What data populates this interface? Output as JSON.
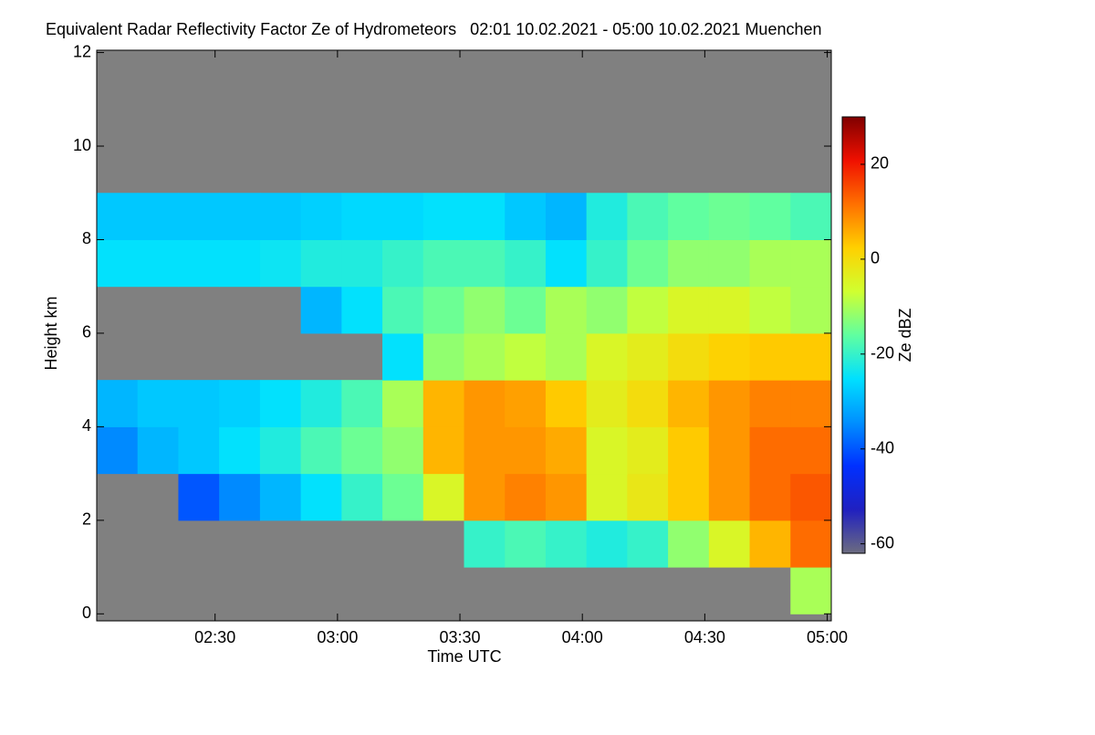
{
  "chart_data": {
    "type": "heatmap",
    "title": "Equivalent Radar Reflectivity Factor Ze of Hydrometeors   02:01 10.02.2021 - 05:00 10.02.2021 Muenchen",
    "x_label": "Time UTC",
    "y_label": "Height km",
    "colorbar_label": "Ze dBZ",
    "xlim": [
      121,
      301
    ],
    "ylim": [
      -0.15,
      12.05
    ],
    "zlim": [
      -62,
      30
    ],
    "xticks": [
      {
        "value": 150,
        "label": "02:30"
      },
      {
        "value": 180,
        "label": "03:00"
      },
      {
        "value": 210,
        "label": "03:30"
      },
      {
        "value": 240,
        "label": "04:00"
      },
      {
        "value": 270,
        "label": "04:30"
      },
      {
        "value": 300,
        "label": "05:00"
      }
    ],
    "yticks": [
      0,
      2,
      4,
      6,
      8,
      10,
      12
    ],
    "zticks": [
      -60,
      -40,
      -20,
      0,
      20
    ],
    "xbins": [
      121,
      131,
      141,
      151,
      161,
      171,
      181,
      191,
      201,
      211,
      221,
      231,
      241,
      251,
      261,
      271,
      281,
      291,
      301
    ],
    "ybins": [
      0,
      1,
      2,
      3,
      4,
      5,
      6,
      7,
      8,
      9,
      10
    ],
    "z": [
      [
        null,
        null,
        null,
        null,
        null,
        null,
        null,
        null,
        null,
        null,
        null,
        null,
        null,
        null,
        null,
        null,
        null,
        -10
      ],
      [
        null,
        null,
        null,
        null,
        null,
        null,
        null,
        null,
        null,
        -20,
        -18,
        -20,
        -22,
        -20,
        -12,
        -5,
        5,
        12
      ],
      [
        null,
        null,
        -40,
        -35,
        -30,
        -25,
        -20,
        -15,
        -5,
        8,
        10,
        8,
        -5,
        -2,
        3,
        8,
        12,
        14
      ],
      [
        -35,
        -30,
        -28,
        -25,
        -22,
        -18,
        -15,
        -12,
        5,
        8,
        8,
        6,
        -5,
        -3,
        3,
        8,
        12,
        12
      ],
      [
        -30,
        -28,
        -28,
        -27,
        -25,
        -22,
        -18,
        -10,
        5,
        8,
        7,
        3,
        -3,
        0,
        5,
        8,
        10,
        10
      ],
      [
        null,
        null,
        null,
        null,
        null,
        null,
        null,
        -25,
        -12,
        -10,
        -8,
        -10,
        -5,
        -3,
        0,
        2,
        3,
        3
      ],
      [
        null,
        null,
        null,
        null,
        null,
        -30,
        -25,
        -18,
        -15,
        -12,
        -15,
        -10,
        -12,
        -8,
        -5,
        -5,
        -8,
        -10
      ],
      [
        -25,
        -25,
        -25,
        -25,
        -24,
        -22,
        -22,
        -20,
        -18,
        -18,
        -20,
        -25,
        -20,
        -15,
        -12,
        -12,
        -10,
        -10
      ],
      [
        -28,
        -28,
        -28,
        -28,
        -28,
        -27,
        -26,
        -26,
        -25,
        -25,
        -28,
        -30,
        -22,
        -18,
        -16,
        -15,
        -16,
        -18
      ],
      [
        null,
        null,
        null,
        null,
        null,
        null,
        null,
        null,
        null,
        null,
        null,
        null,
        null,
        null,
        null,
        null,
        null,
        null
      ]
    ],
    "colorscale": [
      "#6c6c80",
      "#2020c0",
      "#0030ff",
      "#0090ff",
      "#00e0ff",
      "#60ffa0",
      "#d0ff30",
      "#ffd000",
      "#ff7000",
      "#f01000",
      "#800000"
    ],
    "background": "#808080"
  }
}
